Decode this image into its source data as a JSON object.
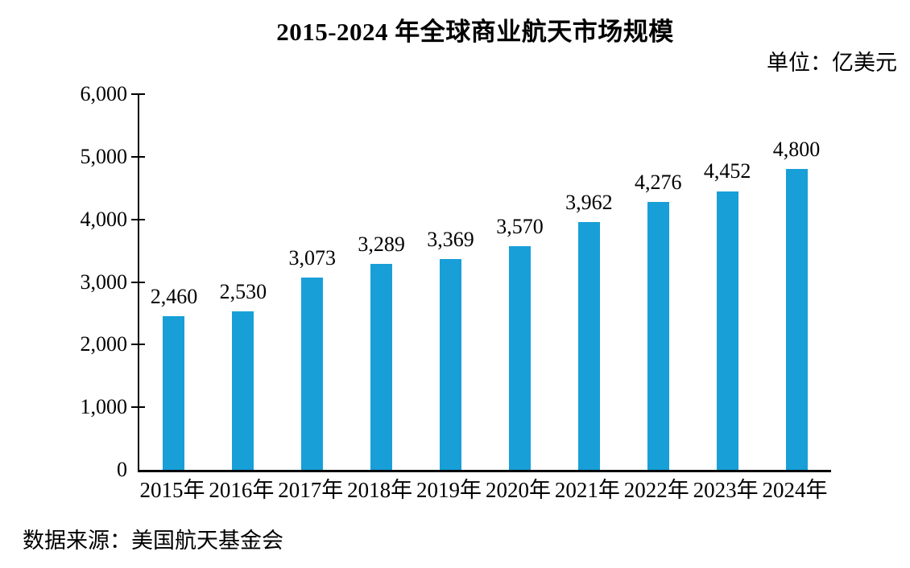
{
  "title": "2015-2024 年全球商业航天市场规模",
  "unit_label": "单位：亿美元",
  "source": "数据来源：美国航天基金会",
  "colors": {
    "bar": "#189FD8",
    "axis": "#000000",
    "text": "#000000",
    "background": "#FFFFFF"
  },
  "chart_data": {
    "type": "bar",
    "title": "2015-2024 年全球商业航天市场规模",
    "unit": "亿美元",
    "categories": [
      "2015年",
      "2016年",
      "2017年",
      "2018年",
      "2019年",
      "2020年",
      "2021年",
      "2022年",
      "2023年",
      "2024年"
    ],
    "values": [
      2460,
      2530,
      3073,
      3289,
      3369,
      3570,
      3962,
      4276,
      4452,
      4800
    ],
    "value_labels": [
      "2,460",
      "2,530",
      "3,073",
      "3,289",
      "3,369",
      "3,570",
      "3,962",
      "4,276",
      "4,452",
      "4,800"
    ],
    "y_ticks": [
      0,
      1000,
      2000,
      3000,
      4000,
      5000,
      6000
    ],
    "y_tick_labels": [
      "0",
      "1,000",
      "2,000",
      "3,000",
      "4,000",
      "5,000",
      "6,000"
    ],
    "ylim": [
      0,
      6000
    ],
    "xlabel": "",
    "ylabel": "",
    "grid": false,
    "legend": false,
    "source": "数据来源：美国航天基金会"
  }
}
